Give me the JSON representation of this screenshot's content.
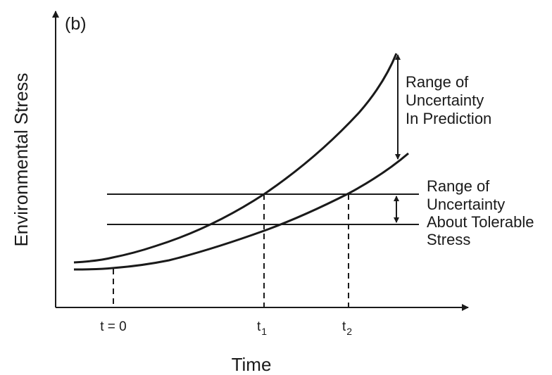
{
  "panel_label": "(b)",
  "axes": {
    "y_label": "Environmental Stress",
    "x_label": "Time"
  },
  "ticks": {
    "t0": "t = 0",
    "t1": {
      "base": "t",
      "sub": "1"
    },
    "t2": {
      "base": "t",
      "sub": "2"
    }
  },
  "annotations": {
    "prediction_range": [
      "Range of",
      "Uncertainty",
      "In Prediction"
    ],
    "tolerable_range": [
      "Range of",
      "Uncertainty",
      "About Tolerable",
      "Stress"
    ]
  },
  "colors": {
    "ink": "#1a1a1a",
    "background": "#ffffff"
  },
  "marker_icons": [
    "double-arrow-icon"
  ]
}
